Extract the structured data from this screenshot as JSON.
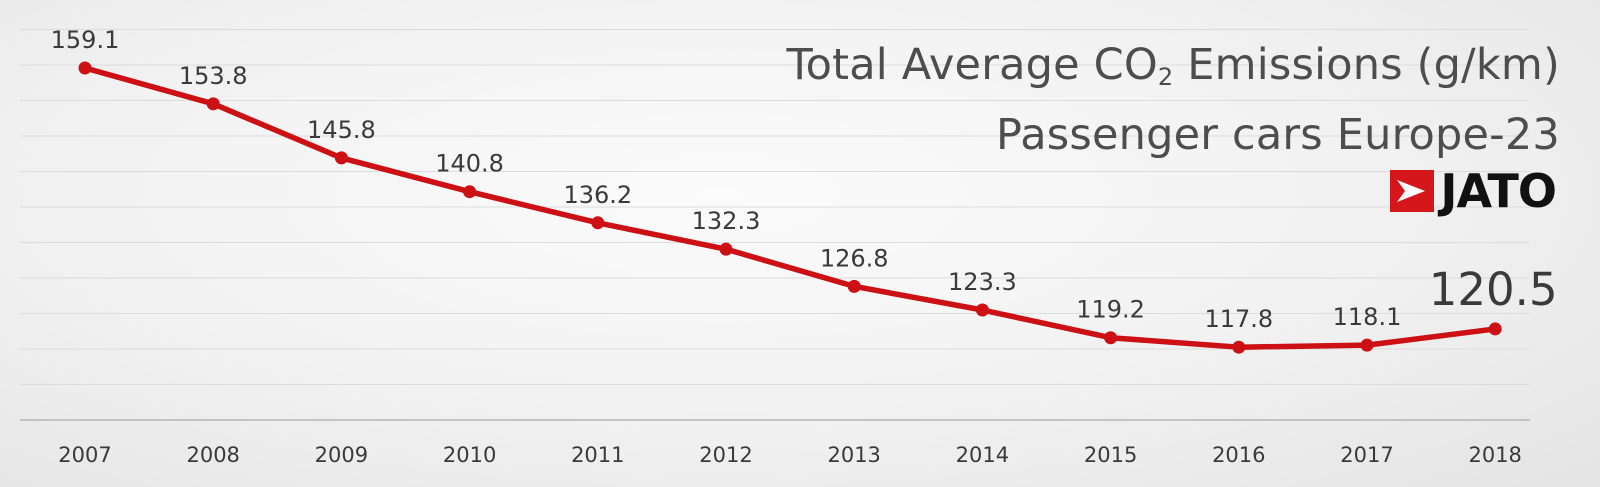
{
  "title": {
    "line1_prefix": "Total Average CO",
    "line1_subscript": "2",
    "line1_suffix": " Emissions (g/km)",
    "line2": "Passenger cars Europe-23"
  },
  "logo": {
    "text": "JATO",
    "icon": "jato-arrow-icon",
    "color": "#d5161b"
  },
  "colors": {
    "line": "#cc1014",
    "grid": "#dcdcdc",
    "axis": "#b5b5b5",
    "text": "#3a3a3a"
  },
  "chart_data": {
    "type": "line",
    "title": "Total Average CO2 Emissions (g/km) Passenger cars Europe-23",
    "xlabel": "",
    "ylabel": "",
    "categories": [
      "2007",
      "2008",
      "2009",
      "2010",
      "2011",
      "2012",
      "2013",
      "2014",
      "2015",
      "2016",
      "2017",
      "2018"
    ],
    "series": [
      {
        "name": "Total Average CO2 Emissions (g/km)",
        "values": [
          159.1,
          153.8,
          145.8,
          140.8,
          136.2,
          132.3,
          126.8,
          123.3,
          119.2,
          117.8,
          118.1,
          120.5
        ],
        "labels": [
          "159.1",
          "153.8",
          "145.8",
          "140.8",
          "136.2",
          "132.3",
          "126.8",
          "123.3",
          "119.2",
          "117.8",
          "118.1",
          "120.5"
        ]
      }
    ],
    "highlight_last_label": true,
    "grid": true,
    "legend": "none"
  }
}
